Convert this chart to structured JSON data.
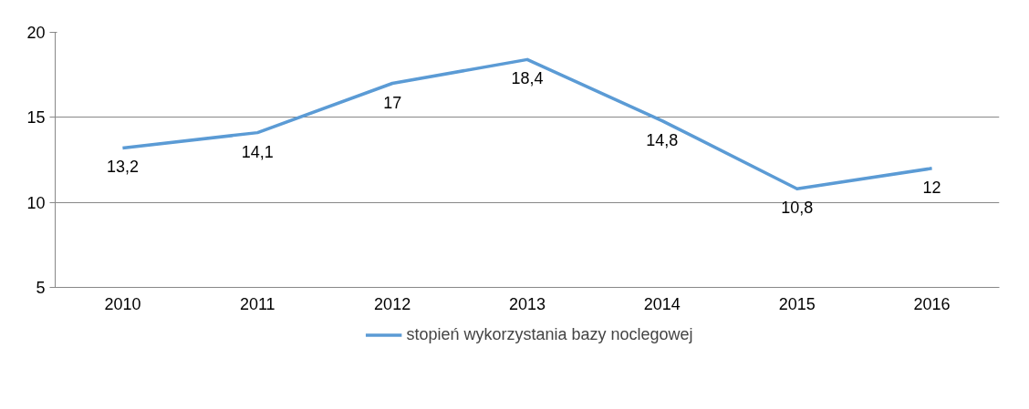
{
  "chart_data": {
    "type": "line",
    "categories": [
      "2010",
      "2011",
      "2012",
      "2013",
      "2014",
      "2015",
      "2016"
    ],
    "series": [
      {
        "name": "stopień wykorzystania bazy noclegowej",
        "color": "#5b9bd5",
        "values": [
          13.2,
          14.1,
          17,
          18.4,
          14.8,
          10.8,
          12
        ],
        "value_labels": [
          "13,2",
          "14,1",
          "17",
          "18,4",
          "14,8",
          "10,8",
          "12"
        ]
      }
    ],
    "ylim": [
      5,
      20
    ],
    "yticks": [
      5,
      10,
      15,
      20
    ],
    "grid": "y",
    "legend": "bottom",
    "marker": "none",
    "line_style": "solid"
  }
}
